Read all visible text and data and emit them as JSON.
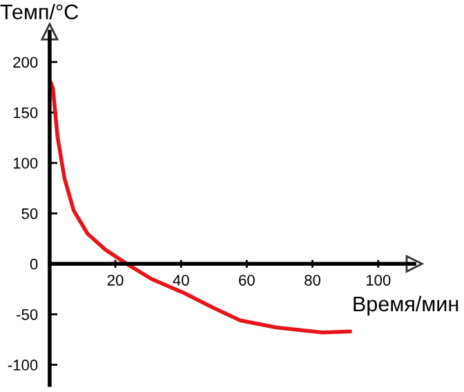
{
  "chart_data": {
    "type": "line",
    "xlabel": "Время/мин",
    "ylabel": "Темп/°C",
    "x": [
      0.3,
      1,
      2.4,
      4.5,
      7.3,
      11.5,
      17,
      23.5,
      31,
      41,
      49.5,
      58,
      69,
      83,
      91.5
    ],
    "series": [
      {
        "color": "#e8141c",
        "values": [
          180,
          174,
          126,
          85,
          53,
          30,
          14,
          0,
          -15,
          -29,
          -43,
          -56,
          -63,
          -68,
          -67
        ]
      }
    ],
    "xlim": [
      0,
      111
    ],
    "xticks": [
      20,
      40,
      60,
      80,
      100
    ],
    "ylim": [
      -120,
      230
    ],
    "yticks": [
      -100,
      -50,
      0,
      50,
      100,
      150,
      200
    ],
    "grid": false,
    "legend": false,
    "marker": "none",
    "line_style": "solid"
  }
}
